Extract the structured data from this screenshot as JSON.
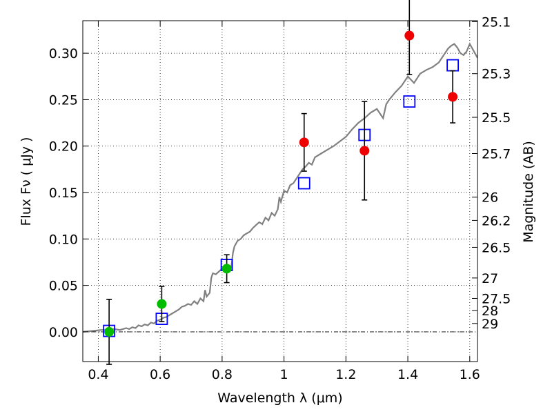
{
  "chart_data": {
    "type": "scatter",
    "xlabel": "Wavelength  λ (μm)",
    "ylabel": "Flux  Fν  ( μJy )",
    "y2label": "Magnitude (AB)",
    "xlim": [
      0.35,
      1.625
    ],
    "ylim": [
      -0.032,
      0.335
    ],
    "grid": true,
    "x_ticks": [
      0.4,
      0.6,
      0.8,
      1.0,
      1.2,
      1.4,
      1.6
    ],
    "x_tick_labels": [
      "0.4",
      "0.6",
      "0.8",
      "1",
      "1.2",
      "1.4",
      "1.6"
    ],
    "y_ticks": [
      0.0,
      0.05,
      0.1,
      0.15,
      0.2,
      0.25,
      0.3
    ],
    "y_tick_labels": [
      "0.00",
      "0.05",
      "0.10",
      "0.15",
      "0.20",
      "0.25",
      "0.30"
    ],
    "mag_ticks": [
      {
        "label": "25.1",
        "flux": 0.334
      },
      {
        "label": "25.3",
        "flux": 0.278
      },
      {
        "label": "25.5",
        "flux": 0.231
      },
      {
        "label": "25.7",
        "flux": 0.192
      },
      {
        "label": "26",
        "flux": 0.145
      },
      {
        "label": "26.2",
        "flux": 0.12
      },
      {
        "label": "26.5",
        "flux": 0.091
      },
      {
        "label": "27",
        "flux": 0.058
      },
      {
        "label": "27.5",
        "flux": 0.036
      },
      {
        "label": "28",
        "flux": 0.023
      },
      {
        "label": "29",
        "flux": 0.009
      }
    ],
    "series": [
      {
        "kind": "line",
        "color": "#808080",
        "points": [
          [
            0.35,
            0.0
          ],
          [
            0.38,
            0.001
          ],
          [
            0.41,
            0.002
          ],
          [
            0.43,
            0.002
          ],
          [
            0.45,
            0.003
          ],
          [
            0.47,
            0.002
          ],
          [
            0.49,
            0.004
          ],
          [
            0.5,
            0.003
          ],
          [
            0.51,
            0.005
          ],
          [
            0.52,
            0.004
          ],
          [
            0.53,
            0.007
          ],
          [
            0.54,
            0.006
          ],
          [
            0.55,
            0.008
          ],
          [
            0.56,
            0.007
          ],
          [
            0.57,
            0.01
          ],
          [
            0.58,
            0.009
          ],
          [
            0.59,
            0.012
          ],
          [
            0.6,
            0.013
          ],
          [
            0.61,
            0.015
          ],
          [
            0.62,
            0.016
          ],
          [
            0.63,
            0.018
          ],
          [
            0.64,
            0.02
          ],
          [
            0.65,
            0.022
          ],
          [
            0.66,
            0.024
          ],
          [
            0.67,
            0.027
          ],
          [
            0.68,
            0.028
          ],
          [
            0.69,
            0.03
          ],
          [
            0.7,
            0.029
          ],
          [
            0.71,
            0.033
          ],
          [
            0.72,
            0.03
          ],
          [
            0.73,
            0.036
          ],
          [
            0.74,
            0.033
          ],
          [
            0.745,
            0.045
          ],
          [
            0.75,
            0.038
          ],
          [
            0.76,
            0.042
          ],
          [
            0.765,
            0.058
          ],
          [
            0.77,
            0.063
          ],
          [
            0.78,
            0.062
          ],
          [
            0.79,
            0.065
          ],
          [
            0.8,
            0.068
          ],
          [
            0.81,
            0.07
          ],
          [
            0.82,
            0.072
          ],
          [
            0.83,
            0.07
          ],
          [
            0.835,
            0.085
          ],
          [
            0.84,
            0.092
          ],
          [
            0.85,
            0.098
          ],
          [
            0.86,
            0.1
          ],
          [
            0.87,
            0.104
          ],
          [
            0.88,
            0.106
          ],
          [
            0.89,
            0.108
          ],
          [
            0.9,
            0.112
          ],
          [
            0.91,
            0.115
          ],
          [
            0.92,
            0.118
          ],
          [
            0.93,
            0.116
          ],
          [
            0.94,
            0.123
          ],
          [
            0.95,
            0.12
          ],
          [
            0.96,
            0.128
          ],
          [
            0.97,
            0.125
          ],
          [
            0.98,
            0.132
          ],
          [
            0.985,
            0.145
          ],
          [
            0.99,
            0.14
          ],
          [
            1.0,
            0.152
          ],
          [
            1.01,
            0.15
          ],
          [
            1.02,
            0.158
          ],
          [
            1.03,
            0.16
          ],
          [
            1.04,
            0.165
          ],
          [
            1.05,
            0.17
          ],
          [
            1.06,
            0.175
          ],
          [
            1.07,
            0.178
          ],
          [
            1.08,
            0.182
          ],
          [
            1.09,
            0.18
          ],
          [
            1.1,
            0.188
          ],
          [
            1.12,
            0.192
          ],
          [
            1.14,
            0.196
          ],
          [
            1.16,
            0.2
          ],
          [
            1.18,
            0.205
          ],
          [
            1.2,
            0.21
          ],
          [
            1.22,
            0.218
          ],
          [
            1.24,
            0.225
          ],
          [
            1.26,
            0.23
          ],
          [
            1.28,
            0.236
          ],
          [
            1.3,
            0.24
          ],
          [
            1.32,
            0.23
          ],
          [
            1.33,
            0.245
          ],
          [
            1.34,
            0.25
          ],
          [
            1.36,
            0.258
          ],
          [
            1.38,
            0.265
          ],
          [
            1.4,
            0.275
          ],
          [
            1.42,
            0.268
          ],
          [
            1.44,
            0.278
          ],
          [
            1.46,
            0.282
          ],
          [
            1.48,
            0.285
          ],
          [
            1.5,
            0.29
          ],
          [
            1.52,
            0.3
          ],
          [
            1.53,
            0.305
          ],
          [
            1.54,
            0.308
          ],
          [
            1.55,
            0.31
          ],
          [
            1.56,
            0.306
          ],
          [
            1.57,
            0.3
          ],
          [
            1.58,
            0.298
          ],
          [
            1.59,
            0.302
          ],
          [
            1.6,
            0.31
          ],
          [
            1.61,
            0.304
          ],
          [
            1.625,
            0.295
          ]
        ]
      },
      {
        "kind": "markers",
        "marker": "square-open",
        "color": "#0000ff",
        "points": [
          [
            0.435,
            0.001
          ],
          [
            0.605,
            0.014
          ],
          [
            0.815,
            0.072
          ],
          [
            1.065,
            0.16
          ],
          [
            1.26,
            0.212
          ],
          [
            1.405,
            0.248
          ],
          [
            1.545,
            0.287
          ]
        ]
      },
      {
        "kind": "markers",
        "marker": "circle",
        "color": "#00bb00",
        "points": [
          [
            0.435,
            0.0
          ],
          [
            0.605,
            0.03
          ],
          [
            0.815,
            0.068
          ]
        ],
        "yerr": [
          0.035,
          0.019,
          0.015
        ]
      },
      {
        "kind": "markers",
        "marker": "circle",
        "color": "#ee0000",
        "points": [
          [
            1.065,
            0.204
          ],
          [
            1.26,
            0.195
          ],
          [
            1.405,
            0.319
          ],
          [
            1.545,
            0.253
          ]
        ],
        "yerr": [
          0.031,
          0.053,
          0.042,
          0.028
        ]
      }
    ]
  }
}
